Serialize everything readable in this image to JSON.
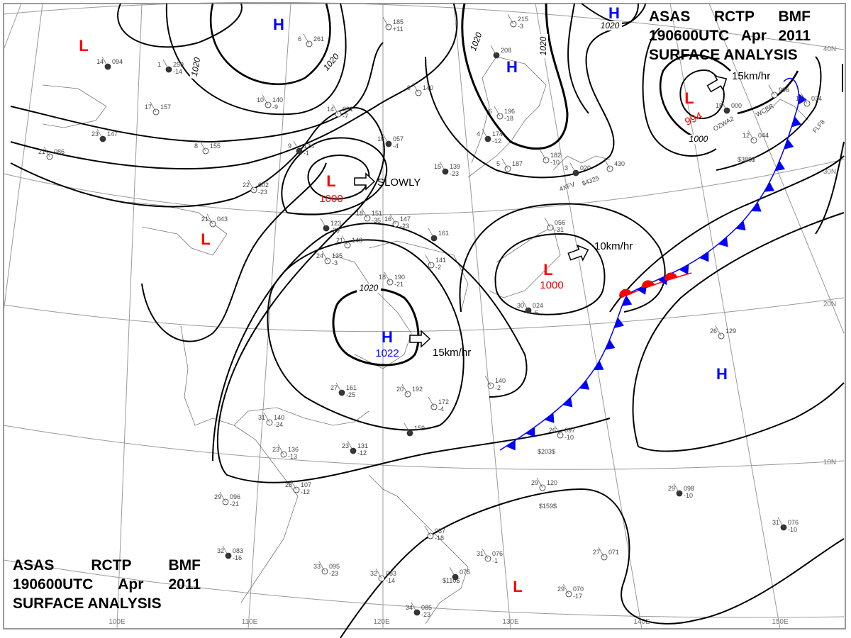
{
  "header": {
    "line1": [
      "ASAS",
      "RCTP",
      "BMF"
    ],
    "line2": [
      "190600UTC",
      "Apr",
      "2011"
    ],
    "line3": "SURFACE  ANALYSIS"
  },
  "colors": {
    "low": "#ff0000",
    "high": "#0000ff",
    "isobar": "#000000",
    "grid": "#888888",
    "coast": "#777777",
    "cold_front": "#0000ff",
    "warm_front": "#ff0000"
  },
  "grid": {
    "longitudes": [
      "100E",
      "110E",
      "120E",
      "130E",
      "140E",
      "150E"
    ],
    "latitudes": [
      "40N",
      "30N",
      "20N",
      "10N"
    ]
  },
  "pressure_systems": [
    {
      "type": "L",
      "label": "L",
      "value": ""
    },
    {
      "type": "H",
      "label": "H",
      "value": ""
    },
    {
      "type": "H",
      "label": "H",
      "value": ""
    },
    {
      "type": "H",
      "label": "H",
      "value": ""
    },
    {
      "type": "L",
      "label": "L",
      "value": "994"
    },
    {
      "type": "L",
      "label": "L",
      "value": "1000"
    },
    {
      "type": "L",
      "label": "L",
      "value": ""
    },
    {
      "type": "L",
      "label": "L",
      "value": "1000"
    },
    {
      "type": "H",
      "label": "H",
      "value": "1022"
    },
    {
      "type": "H",
      "label": "H",
      "value": ""
    },
    {
      "type": "L",
      "label": "L",
      "value": ""
    }
  ],
  "isobar_labels": [
    "1020",
    "1020",
    "1020",
    "1020",
    "1020",
    "1000",
    "1020"
  ],
  "movements": [
    {
      "label": "SLOWLY"
    },
    {
      "label": "15km/hr"
    },
    {
      "label": "10km/hr"
    },
    {
      "label": "15km/hr"
    }
  ],
  "fronts": [
    {
      "type": "cold"
    },
    {
      "type": "warm"
    }
  ],
  "stations": [
    {
      "p": "094",
      "t": "",
      "id": "14"
    },
    {
      "p": "185",
      "t": "+11",
      "id": ""
    },
    {
      "p": "261",
      "t": "",
      "id": "6"
    },
    {
      "p": "259",
      "t": "-14",
      "id": "1"
    },
    {
      "p": "140",
      "t": "-9",
      "id": "10"
    },
    {
      "p": "157",
      "t": "",
      "id": "17"
    },
    {
      "p": "147",
      "t": "",
      "id": "23"
    },
    {
      "p": "086",
      "t": "",
      "id": "21"
    },
    {
      "p": "155",
      "t": "",
      "id": "8"
    },
    {
      "p": "124",
      "t": "-1",
      "id": "9"
    },
    {
      "p": "091",
      "t": "-7",
      "id": "14"
    },
    {
      "p": "140",
      "t": "",
      "id": "9"
    },
    {
      "p": "057",
      "t": "-4",
      "id": "16"
    },
    {
      "p": "002",
      "t": "-23",
      "id": "22"
    },
    {
      "p": "043",
      "t": "",
      "id": "21"
    },
    {
      "p": "139",
      "t": "-23",
      "id": "15"
    },
    {
      "p": "151",
      "t": "-35",
      "id": "18"
    },
    {
      "p": "147",
      "t": "-23",
      "id": "16"
    },
    {
      "p": "123",
      "t": "-29",
      "id": ""
    },
    {
      "p": "148",
      "t": "",
      "id": "21"
    },
    {
      "p": "135",
      "t": "-3",
      "id": "24"
    },
    {
      "p": "161",
      "t": "",
      "id": ""
    },
    {
      "p": "141",
      "t": "-2",
      "id": ""
    },
    {
      "p": "190",
      "t": "-21",
      "id": "18"
    },
    {
      "p": "161",
      "t": "-25",
      "id": "27"
    },
    {
      "p": "192",
      "t": "",
      "id": "20"
    },
    {
      "p": "172",
      "t": "-4",
      "id": ""
    },
    {
      "p": "159",
      "t": "",
      "id": ""
    },
    {
      "p": "140",
      "t": "-24",
      "id": "31"
    },
    {
      "p": "136",
      "t": "-13",
      "id": "23"
    },
    {
      "p": "131",
      "t": "-12",
      "id": "23"
    },
    {
      "p": "107",
      "t": "-12",
      "id": "28"
    },
    {
      "p": "096",
      "t": "-21",
      "id": "29"
    },
    {
      "p": "083",
      "t": "-16",
      "id": "32"
    },
    {
      "p": "095",
      "t": "-23",
      "id": "33"
    },
    {
      "p": "083",
      "t": "-14",
      "id": "32"
    },
    {
      "p": "085",
      "t": "-23",
      "id": "34"
    },
    {
      "p": "087",
      "t": "-18",
      "id": ""
    },
    {
      "p": "076",
      "t": "-1",
      "id": "31"
    },
    {
      "p": "075",
      "t": "",
      "id": ""
    },
    {
      "p": "097",
      "t": "-10",
      "id": "26"
    },
    {
      "p": "120",
      "t": "",
      "id": "29"
    },
    {
      "p": "098",
      "t": "-10",
      "id": "29"
    },
    {
      "p": "071",
      "t": "",
      "id": "27"
    },
    {
      "p": "070",
      "t": "-17",
      "id": "29"
    },
    {
      "p": "076",
      "t": "-10",
      "id": "31"
    },
    {
      "p": "129",
      "t": "",
      "id": "26"
    },
    {
      "p": "140",
      "t": "-2",
      "id": ""
    },
    {
      "p": "208",
      "t": "",
      "id": ""
    },
    {
      "p": "215",
      "t": "-3",
      "id": ""
    },
    {
      "p": "196",
      "t": "-18",
      "id": "6"
    },
    {
      "p": "174",
      "t": "-12",
      "id": "4"
    },
    {
      "p": "187",
      "t": "",
      "id": "5"
    },
    {
      "p": "182",
      "t": "-10",
      "id": ""
    },
    {
      "p": "020",
      "t": "",
      "id": "3"
    },
    {
      "p": "430",
      "t": "",
      "id": ""
    },
    {
      "p": "996",
      "t": "",
      "id": ""
    },
    {
      "p": "000",
      "t": "",
      "id": "15"
    },
    {
      "p": "044",
      "t": "",
      "id": "12"
    },
    {
      "p": "034",
      "t": "",
      "id": "17"
    },
    {
      "p": "024",
      "t": "-6",
      "id": "30"
    },
    {
      "p": "056",
      "t": "-31",
      "id": ""
    }
  ],
  "station_codes": [
    "$203$",
    "$159$",
    "$110$",
    "$4325",
    "4XFV",
    "OZWA2",
    "WCBR",
    "FLF8",
    "$388$"
  ]
}
